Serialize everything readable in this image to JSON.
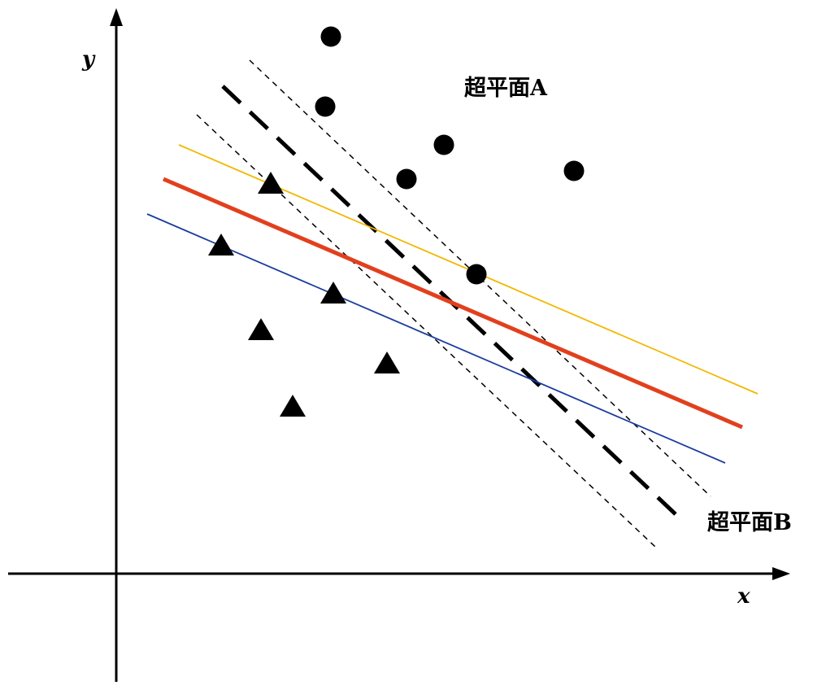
{
  "axes": {
    "x_label": "x",
    "y_label": "y"
  },
  "labels": {
    "plane_a": "超平面A",
    "plane_b": "超平面B"
  },
  "classes": {
    "circle": {
      "marker": "filled-circle",
      "color": "#000000"
    },
    "triangle": {
      "marker": "filled-triangle",
      "color": "#000000"
    }
  },
  "lines": {
    "hyperplane_a": {
      "color": "#e2401d",
      "style": "solid-thick"
    },
    "margin_a_upper": {
      "color": "#f2b800",
      "style": "solid-thin"
    },
    "margin_a_lower": {
      "color": "#1a3d9e",
      "style": "solid-thin"
    },
    "hyperplane_b": {
      "color": "#000000",
      "style": "dashed-thick"
    },
    "margin_b_upper": {
      "color": "#000000",
      "style": "dashed-thin"
    },
    "margin_b_lower": {
      "color": "#000000",
      "style": "dashed-thin"
    }
  }
}
